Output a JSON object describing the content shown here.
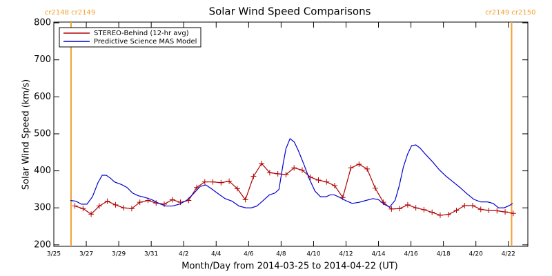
{
  "chart_data": {
    "type": "line",
    "title": "Solar Wind Speed Comparisons",
    "x_label": "Month/Day from 2014-03-25 to 2014-04-22 (UT)",
    "y_label": "Solar Wind Speed (km/s)",
    "xlim": [
      0,
      29.2
    ],
    "ylim": [
      196,
      802
    ],
    "xticks": [
      {
        "value": 0,
        "label": "3/25"
      },
      {
        "value": 2,
        "label": "3/27"
      },
      {
        "value": 4,
        "label": "3/29"
      },
      {
        "value": 6,
        "label": "3/31"
      },
      {
        "value": 8,
        "label": "4/2"
      },
      {
        "value": 10,
        "label": "4/4"
      },
      {
        "value": 12,
        "label": "4/6"
      },
      {
        "value": 14,
        "label": "4/8"
      },
      {
        "value": 16,
        "label": "4/10"
      },
      {
        "value": 18,
        "label": "4/12"
      },
      {
        "value": 20,
        "label": "4/14"
      },
      {
        "value": 22,
        "label": "4/16"
      },
      {
        "value": 24,
        "label": "4/18"
      },
      {
        "value": 26,
        "label": "4/20"
      },
      {
        "value": 28,
        "label": "4/22"
      }
    ],
    "yticks": [
      200,
      300,
      400,
      500,
      600,
      700,
      800
    ],
    "legend": "upper left",
    "boundaries": [
      {
        "x": 1.06,
        "label": "cr2148 cr2149",
        "color": "#f0a030"
      },
      {
        "x": 28.2,
        "label": "cr2149 cr2150",
        "color": "#f0a030"
      }
    ],
    "series": [
      {
        "name": "STEREO-Behind (12-hr avg)",
        "color": "#b00000",
        "marker": "+",
        "x": [
          1.3,
          1.8,
          2.3,
          2.8,
          3.3,
          3.8,
          4.3,
          4.8,
          5.3,
          5.8,
          6.3,
          6.8,
          7.3,
          7.8,
          8.3,
          8.8,
          9.3,
          9.8,
          10.3,
          10.8,
          11.3,
          11.8,
          12.3,
          12.8,
          13.3,
          13.8,
          14.3,
          14.8,
          15.3,
          15.8,
          16.3,
          16.8,
          17.3,
          17.8,
          18.3,
          18.8,
          19.3,
          19.8,
          20.3,
          20.8,
          21.3,
          21.8,
          22.3,
          22.8,
          23.3,
          23.8,
          24.3,
          24.8,
          25.3,
          25.8,
          26.3,
          26.8,
          27.3,
          27.8,
          28.3
        ],
        "values": [
          305,
          298,
          283,
          305,
          318,
          308,
          300,
          298,
          315,
          320,
          313,
          310,
          322,
          315,
          320,
          355,
          370,
          370,
          368,
          372,
          352,
          322,
          385,
          420,
          395,
          392,
          390,
          408,
          402,
          383,
          375,
          370,
          360,
          328,
          408,
          418,
          405,
          353,
          315,
          297,
          298,
          308,
          300,
          295,
          288,
          280,
          282,
          293,
          306,
          306,
          296,
          293,
          292,
          289,
          285
        ]
      },
      {
        "name": "Predictive Science MAS Model",
        "color": "#0000d0",
        "x": [
          1.02,
          1.36,
          1.7,
          2.04,
          2.38,
          2.72,
          2.98,
          3.23,
          3.49,
          3.74,
          4.17,
          4.51,
          4.85,
          5.19,
          5.62,
          6.04,
          6.47,
          6.89,
          7.32,
          7.74,
          8.17,
          8.6,
          9.02,
          9.36,
          9.7,
          10.13,
          10.55,
          10.98,
          11.4,
          11.83,
          12.17,
          12.51,
          12.85,
          13.28,
          13.62,
          13.87,
          14.13,
          14.3,
          14.55,
          14.81,
          15.06,
          15.4,
          15.74,
          16.09,
          16.43,
          16.77,
          17.02,
          17.28,
          17.62,
          17.96,
          18.38,
          18.81,
          19.23,
          19.66,
          20.0,
          20.34,
          20.68,
          21.02,
          21.28,
          21.53,
          21.79,
          22.04,
          22.3,
          22.55,
          22.89,
          23.32,
          23.74,
          24.17,
          24.6,
          25.02,
          25.45,
          25.87,
          26.3,
          26.72,
          27.06,
          27.4,
          27.74,
          28.09,
          28.26
        ],
        "values": [
          320,
          318,
          310,
          310,
          330,
          368,
          388,
          388,
          380,
          370,
          363,
          355,
          340,
          333,
          328,
          322,
          312,
          305,
          305,
          310,
          320,
          338,
          358,
          362,
          352,
          338,
          325,
          318,
          305,
          300,
          300,
          305,
          318,
          335,
          340,
          350,
          420,
          460,
          487,
          478,
          455,
          418,
          378,
          345,
          330,
          330,
          335,
          335,
          328,
          320,
          312,
          315,
          320,
          325,
          322,
          310,
          302,
          320,
          360,
          410,
          445,
          468,
          470,
          462,
          445,
          425,
          403,
          385,
          370,
          355,
          338,
          323,
          316,
          316,
          312,
          300,
          300,
          307,
          312
        ]
      }
    ]
  }
}
